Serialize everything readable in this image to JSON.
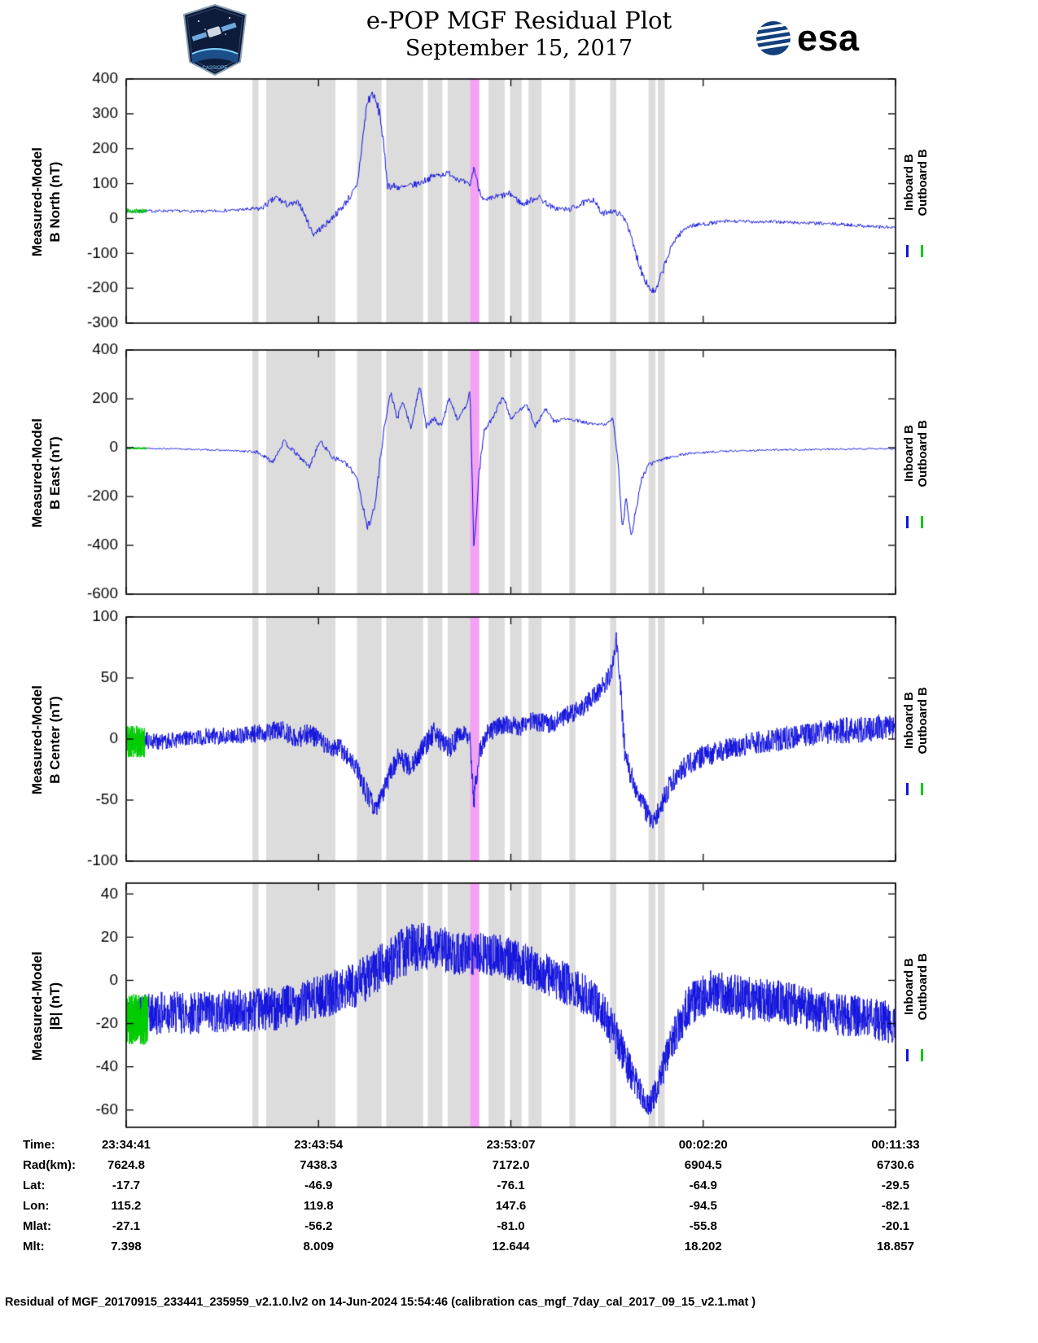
{
  "header": {
    "title_line1": "e-POP MGF Residual Plot",
    "title_line2": "September 15, 2017",
    "esa_logo_text": "esa",
    "patch_text": "CASSIOPE"
  },
  "legend": {
    "inboard_label": "Inboard B",
    "outboard_label": "Outboard B"
  },
  "colors": {
    "trace_blue": "#1212dd",
    "trace_green": "#00cc00",
    "band_gray": "#dcdcdc",
    "band_magenta": "#f3a2f3",
    "axis_black": "#000000",
    "esa_blue": "#12407e"
  },
  "bottom_table": {
    "rows": [
      {
        "label": "Time:",
        "values": [
          "23:34:41",
          "23:43:54",
          "23:53:07",
          "00:02:20",
          "00:11:33"
        ]
      },
      {
        "label": "Rad(km):",
        "values": [
          "7624.8",
          "7438.3",
          "7172.0",
          "6904.5",
          "6730.6"
        ]
      },
      {
        "label": "Lat:",
        "values": [
          "-17.7",
          "-46.9",
          "-76.1",
          "-64.9",
          "-29.5"
        ]
      },
      {
        "label": "Lon:",
        "values": [
          "115.2",
          "119.8",
          "147.6",
          "-94.5",
          "-82.1"
        ]
      },
      {
        "label": "Mlat:",
        "values": [
          "-27.1",
          "-56.2",
          "-81.0",
          "-55.8",
          "-20.1"
        ]
      },
      {
        "label": "Mlt:",
        "values": [
          "7.398",
          "8.009",
          "12.644",
          "18.202",
          "18.857"
        ]
      }
    ]
  },
  "footer": {
    "text": "Residual of MGF_20170915_233441_235959_v2.1.0.lv2 on 14-Jun-2024 15:54:46 (calibration cas_mgf_7day_cal_2017_09_15_v2.1.mat )"
  },
  "chart_data": {
    "type": "line",
    "x_tick_labels": [
      "23:34:41",
      "23:43:54",
      "23:53:07",
      "00:02:20",
      "00:11:33"
    ],
    "x_axis_rows": [
      "Time",
      "Rad(km)",
      "Lat",
      "Lon",
      "Mlat",
      "Mlt"
    ],
    "legend_entries": [
      {
        "name": "Inboard B",
        "color": "#1212dd"
      },
      {
        "name": "Outboard B",
        "color": "#00cc00"
      }
    ],
    "gray_bands": [
      [
        0.164,
        0.172
      ],
      [
        0.182,
        0.272
      ],
      [
        0.3,
        0.332
      ],
      [
        0.338,
        0.386
      ],
      [
        0.392,
        0.411
      ],
      [
        0.418,
        0.4465
      ],
      [
        0.471,
        0.492
      ],
      [
        0.499,
        0.514
      ],
      [
        0.523,
        0.54
      ],
      [
        0.576,
        0.584
      ],
      [
        0.629,
        0.637
      ],
      [
        0.679,
        0.688
      ],
      [
        0.691,
        0.7
      ]
    ],
    "magenta_band": [
      0.4468,
      0.459
    ],
    "panels": [
      {
        "ylabel_line1": "Measured-Model",
        "ylabel_line2": "B North (nT)",
        "ymin": -300,
        "ymax": 400,
        "yticks": [
          400,
          300,
          200,
          100,
          0,
          -100,
          -200,
          -300
        ],
        "n_points": 1100,
        "seed": 7,
        "blue_keypoints": [
          [
            0,
            20,
            5
          ],
          [
            0.05,
            22,
            4
          ],
          [
            0.1,
            20,
            4
          ],
          [
            0.15,
            25,
            5
          ],
          [
            0.175,
            28,
            8
          ],
          [
            0.195,
            60,
            10
          ],
          [
            0.21,
            38,
            9
          ],
          [
            0.225,
            45,
            9
          ],
          [
            0.243,
            -45,
            9
          ],
          [
            0.258,
            -20,
            9
          ],
          [
            0.28,
            30,
            10
          ],
          [
            0.3,
            90,
            12
          ],
          [
            0.313,
            330,
            20
          ],
          [
            0.32,
            360,
            12
          ],
          [
            0.33,
            300,
            18
          ],
          [
            0.34,
            95,
            12
          ],
          [
            0.36,
            88,
            10
          ],
          [
            0.38,
            100,
            10
          ],
          [
            0.4,
            122,
            9
          ],
          [
            0.42,
            130,
            8
          ],
          [
            0.435,
            108,
            9
          ],
          [
            0.447,
            95,
            8
          ],
          [
            0.452,
            148,
            7
          ],
          [
            0.458,
            88,
            9
          ],
          [
            0.466,
            48,
            10
          ],
          [
            0.48,
            62,
            9
          ],
          [
            0.5,
            70,
            10
          ],
          [
            0.515,
            40,
            9
          ],
          [
            0.535,
            62,
            10
          ],
          [
            0.555,
            30,
            8
          ],
          [
            0.575,
            25,
            8
          ],
          [
            0.595,
            45,
            9
          ],
          [
            0.608,
            55,
            8
          ],
          [
            0.618,
            12,
            8
          ],
          [
            0.628,
            22,
            8
          ],
          [
            0.64,
            15,
            8
          ],
          [
            0.65,
            -5,
            8
          ],
          [
            0.66,
            -85,
            13
          ],
          [
            0.67,
            -150,
            15
          ],
          [
            0.68,
            -200,
            12
          ],
          [
            0.688,
            -213,
            9
          ],
          [
            0.695,
            -165,
            12
          ],
          [
            0.703,
            -115,
            11
          ],
          [
            0.713,
            -60,
            9
          ],
          [
            0.73,
            -22,
            7
          ],
          [
            0.78,
            -8,
            5
          ],
          [
            0.85,
            -10,
            5
          ],
          [
            0.93,
            -17,
            5
          ],
          [
            1,
            -27,
            5
          ]
        ],
        "green_keypoints": [
          [
            0,
            22,
            7
          ],
          [
            0.026,
            22,
            7
          ]
        ]
      },
      {
        "ylabel_line1": "Measured-Model",
        "ylabel_line2": "B East (nT)",
        "ymin": -600,
        "ymax": 400,
        "yticks": [
          400,
          200,
          0,
          -200,
          -400,
          -600
        ],
        "n_points": 1100,
        "seed": 13,
        "blue_keypoints": [
          [
            0,
            0,
            4
          ],
          [
            0.05,
            -4,
            3
          ],
          [
            0.1,
            -8,
            3
          ],
          [
            0.15,
            -14,
            4
          ],
          [
            0.17,
            -18,
            7
          ],
          [
            0.19,
            -58,
            10
          ],
          [
            0.205,
            25,
            10
          ],
          [
            0.222,
            -28,
            9
          ],
          [
            0.238,
            -78,
            10
          ],
          [
            0.252,
            28,
            9
          ],
          [
            0.268,
            -38,
            10
          ],
          [
            0.283,
            -58,
            9
          ],
          [
            0.3,
            -118,
            13
          ],
          [
            0.313,
            -328,
            18
          ],
          [
            0.323,
            -248,
            18
          ],
          [
            0.334,
            55,
            18
          ],
          [
            0.344,
            228,
            13
          ],
          [
            0.352,
            118,
            13
          ],
          [
            0.36,
            188,
            13
          ],
          [
            0.37,
            78,
            11
          ],
          [
            0.382,
            258,
            13
          ],
          [
            0.39,
            88,
            11
          ],
          [
            0.4,
            118,
            11
          ],
          [
            0.41,
            88,
            9
          ],
          [
            0.42,
            208,
            11
          ],
          [
            0.43,
            118,
            9
          ],
          [
            0.44,
            158,
            11
          ],
          [
            0.447,
            228,
            9
          ],
          [
            0.452,
            -418,
            25
          ],
          [
            0.459,
            -95,
            18
          ],
          [
            0.466,
            78,
            13
          ],
          [
            0.476,
            118,
            9
          ],
          [
            0.49,
            212,
            11
          ],
          [
            0.5,
            118,
            9
          ],
          [
            0.51,
            148,
            9
          ],
          [
            0.52,
            182,
            9
          ],
          [
            0.532,
            88,
            9
          ],
          [
            0.545,
            158,
            9
          ],
          [
            0.556,
            108,
            9
          ],
          [
            0.57,
            118,
            7
          ],
          [
            0.59,
            108,
            7
          ],
          [
            0.61,
            93,
            7
          ],
          [
            0.625,
            98,
            7
          ],
          [
            0.633,
            118,
            7
          ],
          [
            0.639,
            -48,
            18
          ],
          [
            0.645,
            -328,
            18
          ],
          [
            0.65,
            -198,
            18
          ],
          [
            0.656,
            -368,
            13
          ],
          [
            0.663,
            -248,
            18
          ],
          [
            0.671,
            -118,
            13
          ],
          [
            0.68,
            -68,
            9
          ],
          [
            0.7,
            -44,
            7
          ],
          [
            0.73,
            -24,
            5
          ],
          [
            0.78,
            -14,
            4
          ],
          [
            0.85,
            -9,
            4
          ],
          [
            0.95,
            -5,
            3
          ],
          [
            1,
            -4,
            3
          ]
        ],
        "green_keypoints": [
          [
            0,
            -2,
            5
          ],
          [
            0.026,
            -2,
            5
          ]
        ]
      },
      {
        "ylabel_line1": "Measured-Model",
        "ylabel_line2": "B Center (nT)",
        "ymin": -100,
        "ymax": 100,
        "yticks": [
          100,
          50,
          0,
          -50,
          -100
        ],
        "n_points": 2400,
        "seed": 21,
        "blue_keypoints": [
          [
            0,
            0,
            7
          ],
          [
            0.05,
            -2,
            7
          ],
          [
            0.1,
            2,
            7
          ],
          [
            0.15,
            3,
            7
          ],
          [
            0.18,
            5,
            8
          ],
          [
            0.2,
            8,
            9
          ],
          [
            0.22,
            0,
            8
          ],
          [
            0.24,
            5,
            9
          ],
          [
            0.26,
            -5,
            8
          ],
          [
            0.28,
            -8,
            8
          ],
          [
            0.3,
            -25,
            9
          ],
          [
            0.315,
            -48,
            9
          ],
          [
            0.325,
            -58,
            7
          ],
          [
            0.34,
            -33,
            9
          ],
          [
            0.355,
            -14,
            9
          ],
          [
            0.37,
            -24,
            9
          ],
          [
            0.385,
            -9,
            9
          ],
          [
            0.4,
            5,
            9
          ],
          [
            0.42,
            -8,
            9
          ],
          [
            0.435,
            5,
            8
          ],
          [
            0.447,
            0,
            7
          ],
          [
            0.452,
            -50,
            9
          ],
          [
            0.46,
            -8,
            9
          ],
          [
            0.47,
            5,
            8
          ],
          [
            0.49,
            12,
            8
          ],
          [
            0.51,
            10,
            8
          ],
          [
            0.53,
            15,
            8
          ],
          [
            0.55,
            12,
            8
          ],
          [
            0.57,
            18,
            8
          ],
          [
            0.59,
            25,
            8
          ],
          [
            0.6,
            30,
            8
          ],
          [
            0.615,
            40,
            8
          ],
          [
            0.625,
            48,
            8
          ],
          [
            0.632,
            58,
            9
          ],
          [
            0.637,
            83,
            5
          ],
          [
            0.641,
            55,
            9
          ],
          [
            0.648,
            -8,
            11
          ],
          [
            0.655,
            -28,
            9
          ],
          [
            0.665,
            -44,
            9
          ],
          [
            0.675,
            -58,
            9
          ],
          [
            0.685,
            -70,
            7
          ],
          [
            0.695,
            -54,
            9
          ],
          [
            0.705,
            -40,
            9
          ],
          [
            0.72,
            -25,
            9
          ],
          [
            0.75,
            -14,
            9
          ],
          [
            0.8,
            -5,
            9
          ],
          [
            0.85,
            0,
            10
          ],
          [
            0.9,
            5,
            10
          ],
          [
            0.95,
            8,
            11
          ],
          [
            1,
            10,
            11
          ]
        ],
        "green_keypoints": [
          [
            0,
            -2,
            13
          ],
          [
            0.024,
            -2,
            13
          ]
        ]
      },
      {
        "ylabel_line1": "Measured-Model",
        "ylabel_line2": "|B| (nT)",
        "ymin": -68,
        "ymax": 45,
        "yticks": [
          40,
          20,
          0,
          -20,
          -40,
          -60
        ],
        "n_points": 3000,
        "seed": 42,
        "blue_keypoints": [
          [
            0,
            -17,
            9
          ],
          [
            0.05,
            -15,
            10
          ],
          [
            0.1,
            -15,
            10
          ],
          [
            0.15,
            -14,
            10
          ],
          [
            0.2,
            -13,
            10
          ],
          [
            0.25,
            -8,
            10
          ],
          [
            0.3,
            -2,
            11
          ],
          [
            0.34,
            8,
            11
          ],
          [
            0.37,
            15,
            12
          ],
          [
            0.4,
            16,
            11
          ],
          [
            0.43,
            12,
            10
          ],
          [
            0.46,
            12,
            10
          ],
          [
            0.49,
            11,
            10
          ],
          [
            0.52,
            7,
            10
          ],
          [
            0.55,
            2,
            10
          ],
          [
            0.58,
            -3,
            10
          ],
          [
            0.6,
            -8,
            10
          ],
          [
            0.62,
            -14,
            9
          ],
          [
            0.64,
            -28,
            9
          ],
          [
            0.655,
            -42,
            8
          ],
          [
            0.67,
            -53,
            6
          ],
          [
            0.68,
            -58,
            5
          ],
          [
            0.69,
            -50,
            7
          ],
          [
            0.7,
            -38,
            8
          ],
          [
            0.71,
            -28,
            9
          ],
          [
            0.73,
            -12,
            10
          ],
          [
            0.76,
            -5,
            10
          ],
          [
            0.8,
            -8,
            10
          ],
          [
            0.85,
            -10,
            10
          ],
          [
            0.9,
            -14,
            10
          ],
          [
            0.95,
            -17,
            10
          ],
          [
            1,
            -20,
            10
          ]
        ],
        "green_keypoints": [
          [
            0,
            -18,
            12
          ],
          [
            0.028,
            -18,
            12
          ]
        ]
      }
    ]
  }
}
